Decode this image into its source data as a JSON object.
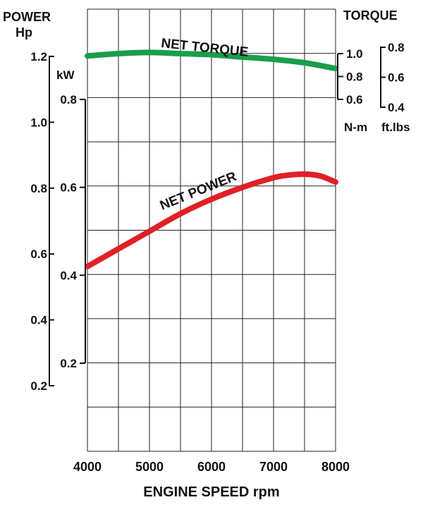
{
  "chart_data": {
    "type": "line",
    "xlabel": "ENGINE SPEED rpm",
    "x_ticks": [
      "4000",
      "5000",
      "6000",
      "7000",
      "8000"
    ],
    "xlim": [
      4000,
      8000
    ],
    "axes": {
      "power_hp": {
        "title_line1": "POWER",
        "title_line2": "Hp",
        "ticks": [
          "1.2",
          "1.0",
          "0.8",
          "0.6",
          "0.4",
          "0.2"
        ],
        "range": [
          0.2,
          1.2
        ]
      },
      "power_kw": {
        "title": "kW",
        "ticks": [
          "0.8",
          "0.6",
          "0.4",
          "0.2"
        ],
        "range": [
          0.2,
          0.8
        ]
      },
      "torque_nm": {
        "title_top": "TORQUE",
        "title": "N-m",
        "ticks": [
          "1.0",
          "0.8",
          "0.6"
        ],
        "range": [
          0.6,
          1.0
        ]
      },
      "torque_ftlbs": {
        "title": "ft.lbs",
        "ticks": [
          "0.8",
          "0.6",
          "0.4"
        ],
        "range": [
          0.4,
          0.8
        ]
      }
    },
    "series": [
      {
        "name": "NET TORQUE",
        "color": "#1a9e4a",
        "axis": "torque_nm",
        "x": [
          4000,
          4500,
          5000,
          5500,
          6000,
          6500,
          7000,
          7500,
          8000
        ],
        "y": [
          0.98,
          1.0,
          1.01,
          1.0,
          0.99,
          0.97,
          0.95,
          0.92,
          0.87
        ]
      },
      {
        "name": "NET POWER",
        "color": "#e02027",
        "axis": "power_kw",
        "x": [
          4000,
          4500,
          5000,
          5500,
          6000,
          6500,
          7000,
          7250,
          7500,
          7750,
          8000
        ],
        "y": [
          0.42,
          0.46,
          0.5,
          0.54,
          0.573,
          0.6,
          0.622,
          0.628,
          0.63,
          0.626,
          0.612
        ]
      }
    ]
  }
}
